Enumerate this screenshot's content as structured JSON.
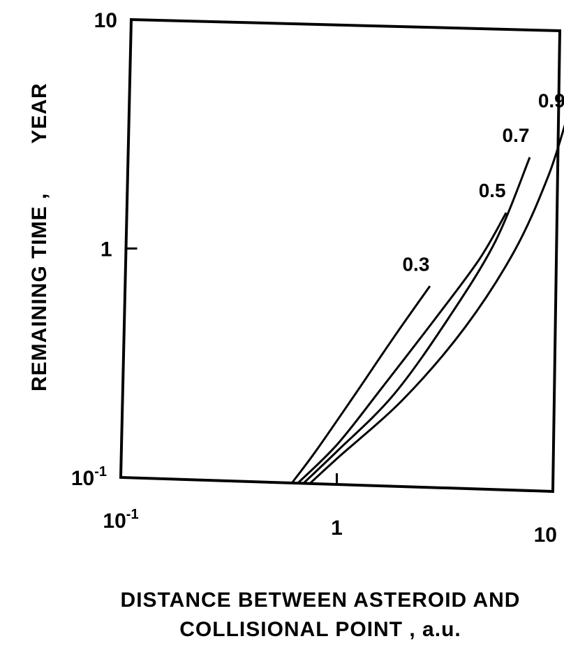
{
  "chart_data": {
    "type": "line",
    "xscale": "log",
    "yscale": "log",
    "xlim": [
      0.1,
      10
    ],
    "ylim": [
      0.1,
      10
    ],
    "xticks": [
      {
        "value": 0.1,
        "label_base": "10",
        "label_exp": "-1"
      },
      {
        "value": 1,
        "label_base": "1",
        "label_exp": ""
      },
      {
        "value": 10,
        "label_base": "10",
        "label_exp": ""
      }
    ],
    "yticks": [
      {
        "value": 0.1,
        "label_base": "10",
        "label_exp": "-1"
      },
      {
        "value": 1,
        "label_base": "1",
        "label_exp": ""
      },
      {
        "value": 10,
        "label_base": "10",
        "label_exp": ""
      }
    ],
    "ylabel_part1": "REMAINING TIME  ,",
    "ylabel_part2": "YEAR",
    "xlabel_line1": "DISTANCE BETWEEN ASTEROID AND",
    "xlabel_line2": "COLLISIONAL POINT ,     a.u.",
    "series": [
      {
        "name": "0.3",
        "x": [
          0.62,
          0.8,
          1.2,
          1.8,
          2.6
        ],
        "y": [
          0.1,
          0.14,
          0.25,
          0.45,
          0.75
        ]
      },
      {
        "name": "0.5",
        "x": [
          0.66,
          1.0,
          1.6,
          2.8,
          4.4,
          5.8
        ],
        "y": [
          0.1,
          0.15,
          0.27,
          0.55,
          1.0,
          1.6
        ]
      },
      {
        "name": "0.7",
        "x": [
          0.7,
          1.0,
          1.8,
          3.2,
          5.2,
          7.4
        ],
        "y": [
          0.1,
          0.14,
          0.25,
          0.55,
          1.2,
          2.8
        ]
      },
      {
        "name": "0.9",
        "x": [
          0.75,
          1.0,
          2.0,
          3.8,
          6.4,
          9.0,
          11.0
        ],
        "y": [
          0.1,
          0.13,
          0.24,
          0.5,
          1.1,
          2.3,
          4.0
        ]
      }
    ]
  }
}
